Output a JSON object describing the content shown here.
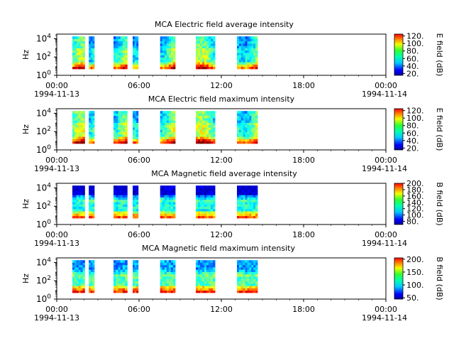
{
  "chart_data": [
    {
      "type": "heatmap",
      "title": "MCA  Electric field average intensity",
      "ylabel": "Hz",
      "yscale": "log",
      "ylim": [
        1,
        31623
      ],
      "y_tick_labels": [
        "10^0",
        "10^2",
        "10^4"
      ],
      "xlim": [
        "1994-11-13 00:00",
        "1994-11-14 00:00"
      ],
      "x_tick_labels": [
        "00:00",
        "06:00",
        "12:00",
        "18:00",
        "00:00"
      ],
      "x_date_labels": [
        "1994-11-13",
        "1994-11-14"
      ],
      "colorbar": {
        "label": "E field (dB)",
        "range": [
          15,
          125
        ],
        "ticks": [
          "20.",
          "40.",
          "60.",
          "80.",
          "100.",
          "120."
        ]
      },
      "data_intervals_hours": [
        [
          0.0,
          0.9
        ],
        [
          1.2,
          1.6
        ],
        [
          3.0,
          4.0
        ],
        [
          4.4,
          4.8
        ],
        [
          6.4,
          7.5
        ],
        [
          9.0,
          10.4
        ],
        [
          12.0,
          13.5
        ]
      ],
      "freq_range_hz": [
        5,
        17800
      ]
    },
    {
      "type": "heatmap",
      "title": "MCA  Electric field maximum intensity",
      "ylabel": "Hz",
      "yscale": "log",
      "ylim": [
        1,
        31623
      ],
      "y_tick_labels": [
        "10^0",
        "10^2",
        "10^4"
      ],
      "xlim": [
        "1994-11-13 00:00",
        "1994-11-14 00:00"
      ],
      "x_tick_labels": [
        "00:00",
        "06:00",
        "12:00",
        "18:00",
        "00:00"
      ],
      "x_date_labels": [
        "1994-11-13",
        "1994-11-14"
      ],
      "colorbar": {
        "label": "E field (dB)",
        "range": [
          15,
          125
        ],
        "ticks": [
          "20.",
          "40.",
          "60.",
          "80.",
          "100.",
          "120."
        ]
      },
      "data_intervals_hours": [
        [
          0.0,
          0.9
        ],
        [
          1.2,
          1.6
        ],
        [
          3.0,
          4.0
        ],
        [
          4.4,
          4.8
        ],
        [
          6.4,
          7.5
        ],
        [
          9.0,
          10.4
        ],
        [
          12.0,
          13.5
        ]
      ],
      "freq_range_hz": [
        5,
        17800
      ]
    },
    {
      "type": "heatmap",
      "title": "MCA  Magnetic field average intensity",
      "ylabel": "Hz",
      "yscale": "log",
      "ylim": [
        1,
        31623
      ],
      "y_tick_labels": [
        "10^0",
        "10^2",
        "10^4"
      ],
      "xlim": [
        "1994-11-13 00:00",
        "1994-11-14 00:00"
      ],
      "x_tick_labels": [
        "00:00",
        "06:00",
        "12:00",
        "18:00",
        "00:00"
      ],
      "x_date_labels": [
        "1994-11-13",
        "1994-11-14"
      ],
      "colorbar": {
        "label": "B field (dB)",
        "range": [
          70,
          200
        ],
        "ticks": [
          "80.",
          "100.",
          "120.",
          "140.",
          "160.",
          "180.",
          "200."
        ]
      },
      "data_intervals_hours": [
        [
          0.0,
          0.9
        ],
        [
          1.2,
          1.6
        ],
        [
          3.0,
          4.0
        ],
        [
          4.4,
          4.8
        ],
        [
          6.4,
          7.5
        ],
        [
          9.0,
          10.4
        ],
        [
          12.0,
          13.5
        ]
      ],
      "freq_range_hz": [
        5,
        17800
      ]
    },
    {
      "type": "heatmap",
      "title": "MCA  Magnetic field maximum intensity",
      "ylabel": "Hz",
      "yscale": "log",
      "ylim": [
        1,
        31623
      ],
      "y_tick_labels": [
        "10^0",
        "10^2",
        "10^4"
      ],
      "xlim": [
        "1994-11-13 00:00",
        "1994-11-14 00:00"
      ],
      "x_tick_labels": [
        "00:00",
        "06:00",
        "12:00",
        "18:00",
        "00:00"
      ],
      "x_date_labels": [
        "1994-11-13",
        "1994-11-14"
      ],
      "colorbar": {
        "label": "B field (dB)",
        "range": [
          45,
          205
        ],
        "ticks": [
          "50.",
          "100.",
          "150.",
          "200."
        ]
      },
      "data_intervals_hours": [
        [
          0.0,
          0.9
        ],
        [
          1.2,
          1.6
        ],
        [
          3.0,
          4.0
        ],
        [
          4.4,
          4.8
        ],
        [
          6.4,
          7.5
        ],
        [
          9.0,
          10.4
        ],
        [
          12.0,
          13.5
        ]
      ],
      "freq_range_hz": [
        5,
        17800
      ]
    }
  ]
}
